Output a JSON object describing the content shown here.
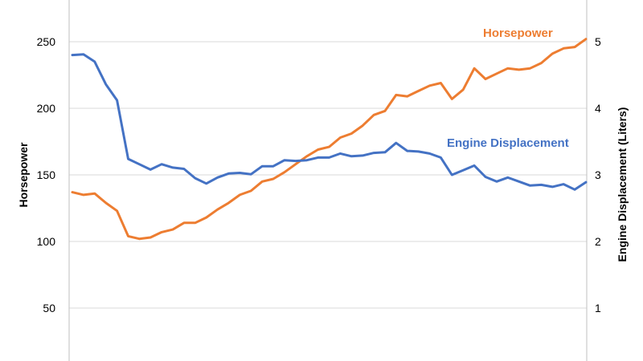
{
  "chart_data": {
    "type": "line",
    "title": "",
    "grid": true,
    "left_axis": {
      "label": "Horsepower",
      "ylim": [
        0,
        275
      ],
      "ticks": [
        "50",
        "100",
        "150",
        "200",
        "250"
      ],
      "tick_values": [
        50,
        100,
        150,
        200,
        250
      ]
    },
    "right_axis": {
      "label": "Engine Displacement (Liters)",
      "ylim": [
        0,
        5.5
      ],
      "ticks": [
        "1",
        "2",
        "3",
        "4",
        "5"
      ],
      "tick_values": [
        1,
        2,
        3,
        4,
        5
      ]
    },
    "series": [
      {
        "name": "Horsepower",
        "axis": "left",
        "color": "#ED7D31",
        "values": [
          137,
          135,
          136,
          129,
          123,
          104,
          102,
          103,
          107,
          109,
          114,
          114,
          118,
          124,
          129,
          135,
          138,
          145,
          147,
          152,
          158,
          164,
          169,
          171,
          178,
          181,
          187,
          195,
          198,
          210,
          209,
          213,
          217,
          219,
          207,
          214,
          230,
          222,
          226,
          230,
          229,
          230,
          234,
          241,
          245,
          246,
          252
        ]
      },
      {
        "name": "Engine Displacement",
        "axis": "right",
        "color": "#4472C4",
        "values": [
          4.8,
          4.81,
          4.7,
          4.36,
          4.12,
          3.24,
          3.16,
          3.08,
          3.16,
          3.11,
          3.09,
          2.95,
          2.87,
          2.96,
          3.02,
          3.03,
          3.01,
          3.13,
          3.13,
          3.22,
          3.21,
          3.22,
          3.26,
          3.26,
          3.32,
          3.28,
          3.29,
          3.33,
          3.34,
          3.48,
          3.36,
          3.35,
          3.32,
          3.26,
          3.0,
          3.07,
          3.14,
          2.97,
          2.9,
          2.96,
          2.9,
          2.84,
          2.85,
          2.82,
          2.86,
          2.78,
          2.89
        ]
      }
    ]
  }
}
